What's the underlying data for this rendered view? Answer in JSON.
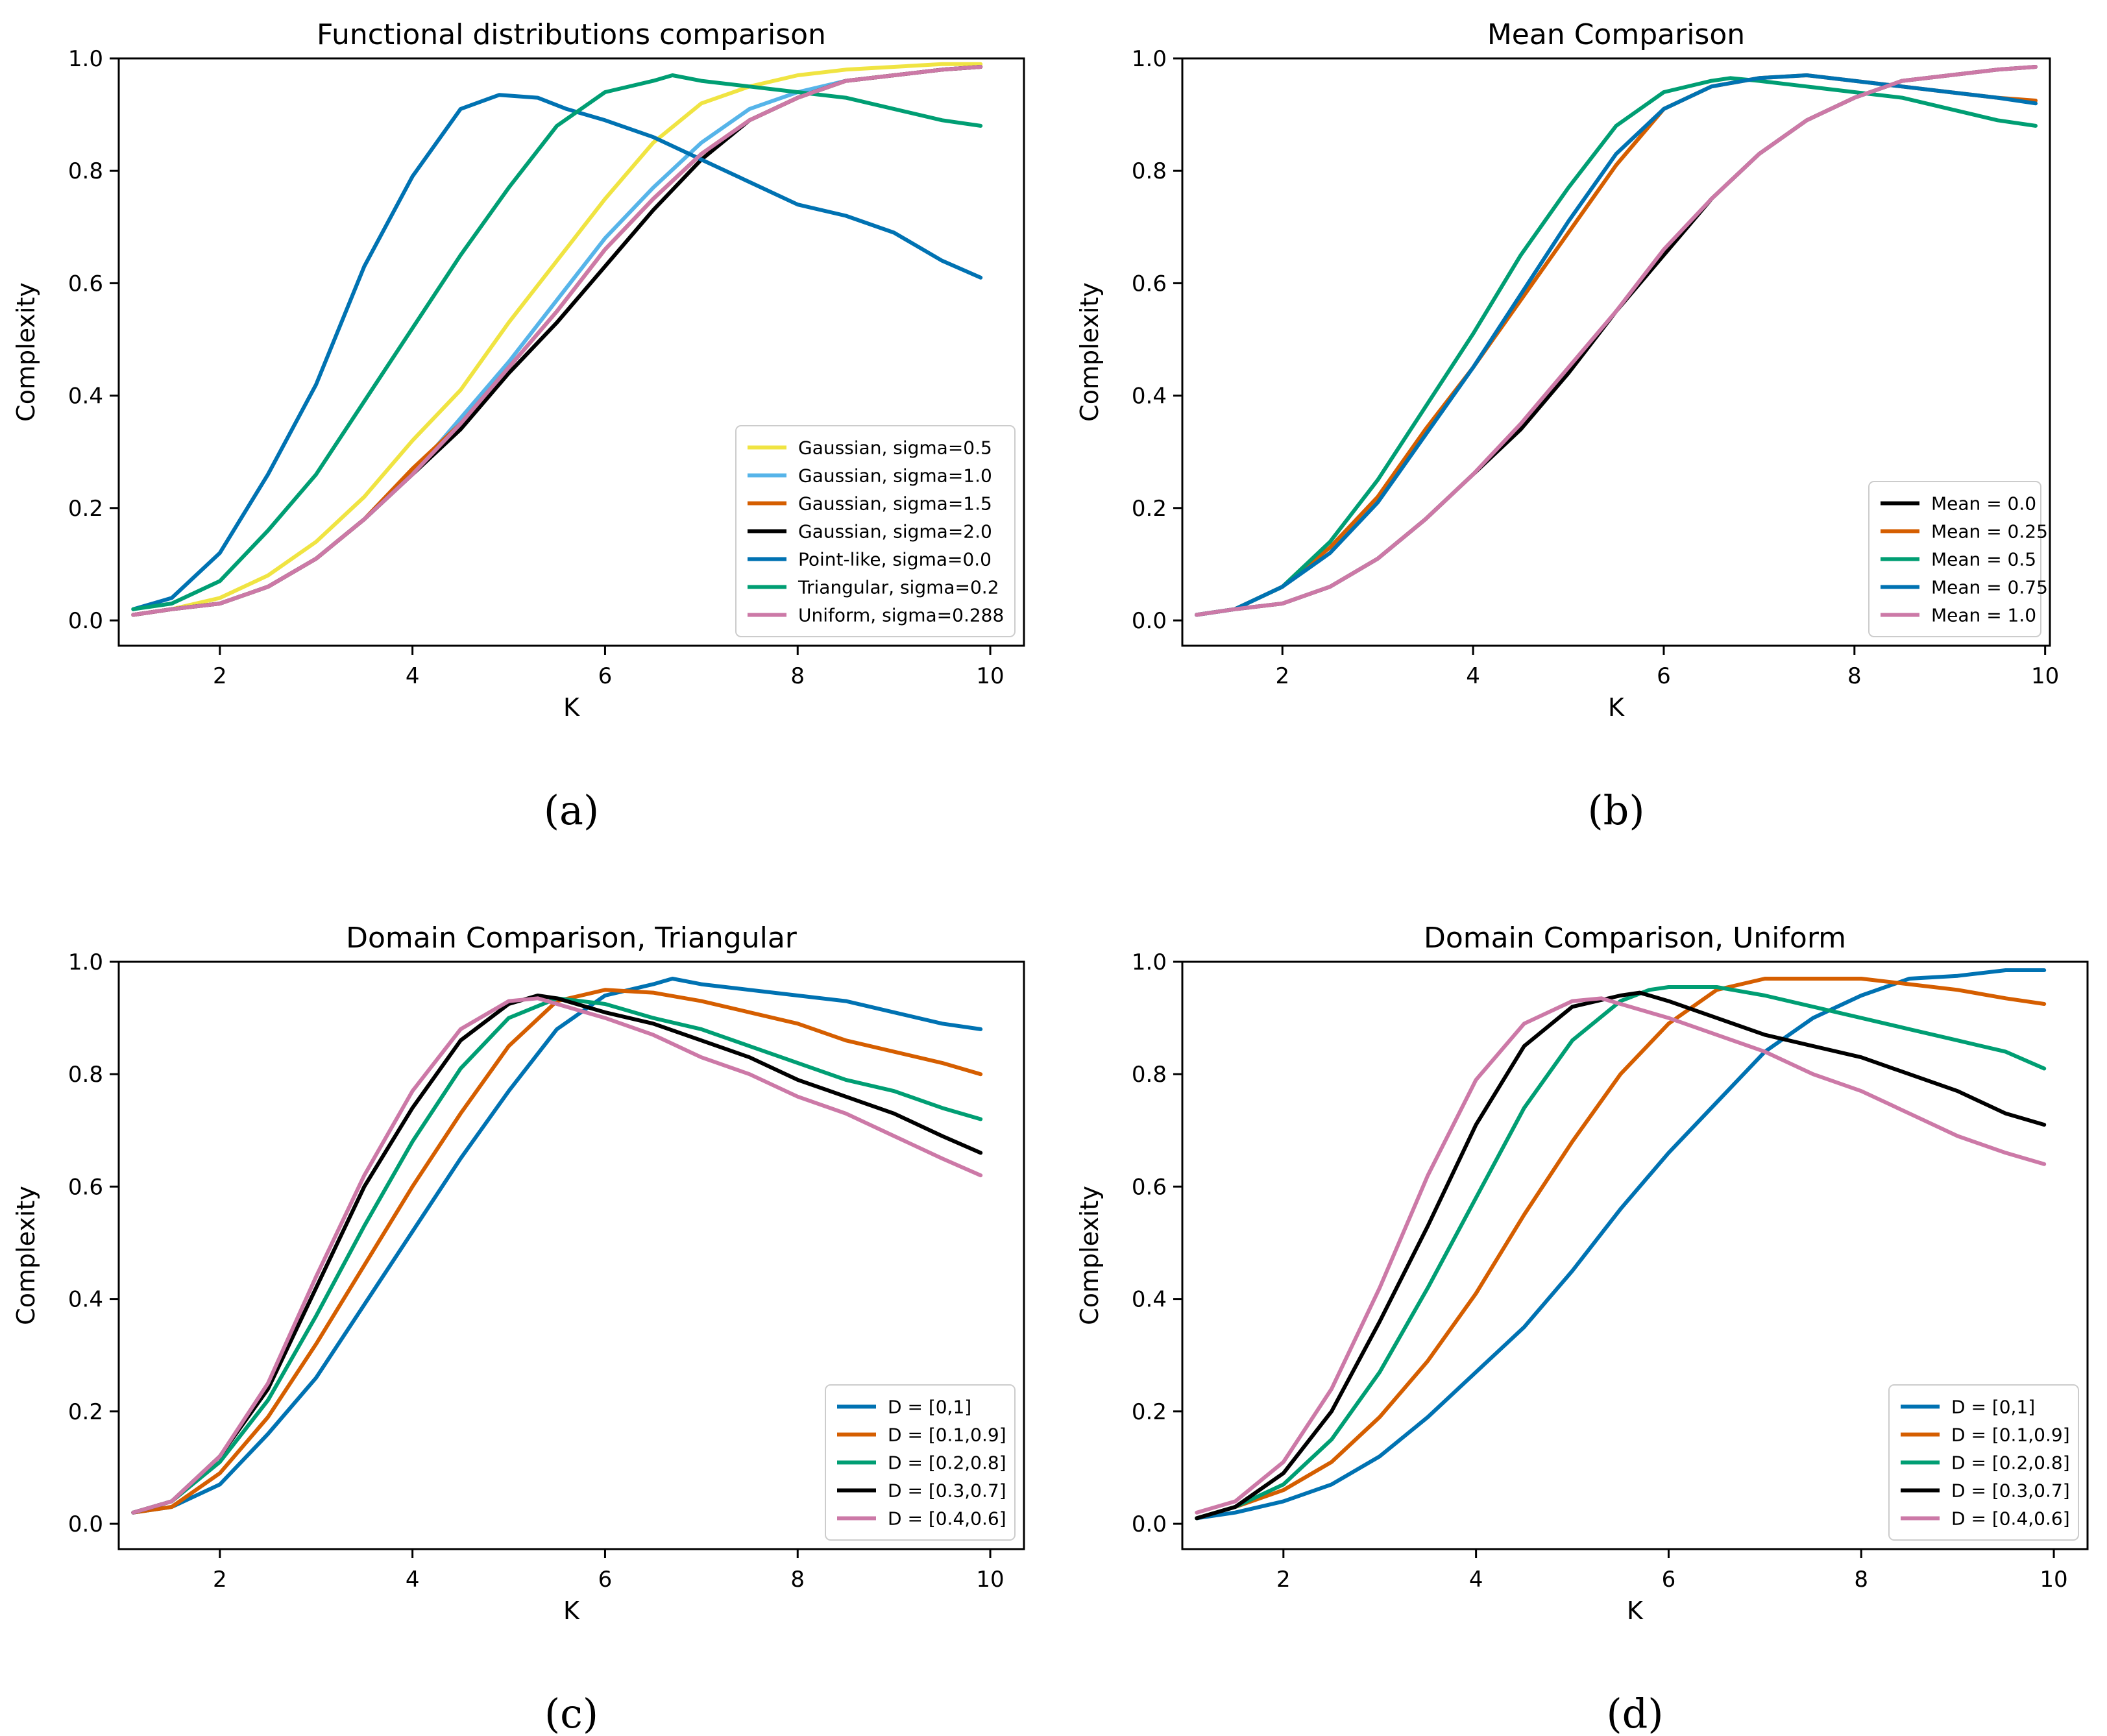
{
  "chart_data": [
    {
      "type": "line",
      "panel_label": "(a)",
      "title": "Functional distributions comparison",
      "xlabel": "K",
      "ylabel": "Complexity",
      "xlim": [
        0.95,
        10.35
      ],
      "ylim": [
        -0.045,
        1.0
      ],
      "xticks": [
        2,
        4,
        6,
        8,
        10
      ],
      "yticks": [
        0.0,
        0.2,
        0.4,
        0.6,
        0.8,
        1.0
      ],
      "legend_position": "lower-right",
      "series": [
        {
          "name": "Gaussian, sigma=0.5",
          "color": "#f0e442",
          "x": [
            1.1,
            1.5,
            2,
            2.5,
            3,
            3.5,
            4,
            4.5,
            5,
            5.5,
            6,
            6.5,
            7,
            7.5,
            8,
            8.5,
            9,
            9.5,
            9.9
          ],
          "y": [
            0.01,
            0.02,
            0.04,
            0.08,
            0.14,
            0.22,
            0.32,
            0.41,
            0.53,
            0.64,
            0.75,
            0.85,
            0.92,
            0.95,
            0.97,
            0.98,
            0.985,
            0.99,
            0.99
          ]
        },
        {
          "name": "Gaussian, sigma=1.0",
          "color": "#56b4e9",
          "x": [
            1.1,
            1.5,
            2,
            2.5,
            3,
            3.5,
            4,
            4.5,
            5,
            5.5,
            6,
            6.5,
            7,
            7.5,
            8,
            8.5,
            9,
            9.5,
            9.9
          ],
          "y": [
            0.01,
            0.02,
            0.03,
            0.06,
            0.11,
            0.18,
            0.26,
            0.36,
            0.46,
            0.57,
            0.68,
            0.77,
            0.85,
            0.91,
            0.94,
            0.96,
            0.97,
            0.98,
            0.985
          ]
        },
        {
          "name": "Gaussian, sigma=1.5",
          "color": "#d55e00",
          "x": [
            1.1,
            1.5,
            2,
            2.5,
            3,
            3.5,
            4,
            4.5,
            5,
            5.5,
            6,
            6.5,
            7,
            7.5,
            8,
            8.5,
            9,
            9.5,
            9.9
          ],
          "y": [
            0.01,
            0.02,
            0.03,
            0.06,
            0.11,
            0.18,
            0.27,
            0.35,
            0.45,
            0.55,
            0.66,
            0.75,
            0.83,
            0.89,
            0.93,
            0.96,
            0.97,
            0.98,
            0.985
          ]
        },
        {
          "name": "Gaussian, sigma=2.0",
          "color": "#000000",
          "x": [
            1.1,
            1.5,
            2,
            2.5,
            3,
            3.5,
            4,
            4.5,
            5,
            5.5,
            6,
            6.5,
            7,
            7.5,
            8,
            8.5,
            9,
            9.5,
            9.9
          ],
          "y": [
            0.01,
            0.02,
            0.03,
            0.06,
            0.11,
            0.18,
            0.26,
            0.34,
            0.44,
            0.53,
            0.63,
            0.73,
            0.82,
            0.89,
            0.93,
            0.96,
            0.97,
            0.98,
            0.985
          ]
        },
        {
          "name": "Point-like, sigma=0.0",
          "color": "#0072b2",
          "x": [
            1.1,
            1.5,
            2,
            2.5,
            3,
            3.5,
            4,
            4.5,
            4.9,
            5.3,
            5.6,
            6,
            6.5,
            7,
            7.5,
            8,
            8.5,
            9,
            9.5,
            9.9
          ],
          "y": [
            0.02,
            0.04,
            0.12,
            0.26,
            0.42,
            0.63,
            0.79,
            0.91,
            0.935,
            0.93,
            0.91,
            0.89,
            0.86,
            0.82,
            0.78,
            0.74,
            0.72,
            0.69,
            0.64,
            0.61
          ]
        },
        {
          "name": "Triangular, sigma=0.2",
          "color": "#009e73",
          "x": [
            1.1,
            1.5,
            2,
            2.5,
            3,
            3.5,
            4,
            4.5,
            5,
            5.5,
            6,
            6.5,
            6.7,
            7,
            7.5,
            8,
            8.5,
            9,
            9.5,
            9.9
          ],
          "y": [
            0.02,
            0.03,
            0.07,
            0.16,
            0.26,
            0.39,
            0.52,
            0.65,
            0.77,
            0.88,
            0.94,
            0.96,
            0.97,
            0.96,
            0.95,
            0.94,
            0.93,
            0.91,
            0.89,
            0.88
          ]
        },
        {
          "name": "Uniform, sigma=0.288",
          "color": "#cc79a7",
          "x": [
            1.1,
            1.5,
            2,
            2.5,
            3,
            3.5,
            4,
            4.5,
            5,
            5.5,
            6,
            6.5,
            7,
            7.5,
            8,
            8.5,
            9,
            9.5,
            9.9
          ],
          "y": [
            0.01,
            0.02,
            0.03,
            0.06,
            0.11,
            0.18,
            0.26,
            0.35,
            0.45,
            0.55,
            0.66,
            0.75,
            0.83,
            0.89,
            0.93,
            0.96,
            0.97,
            0.98,
            0.985
          ]
        }
      ]
    },
    {
      "type": "line",
      "panel_label": "(b)",
      "title": "Mean Comparison",
      "xlabel": "K",
      "ylabel": "Complexity",
      "xlim": [
        0.95,
        10.05
      ],
      "ylim": [
        -0.045,
        1.0
      ],
      "xticks": [
        2,
        4,
        6,
        8,
        10
      ],
      "yticks": [
        0.0,
        0.2,
        0.4,
        0.6,
        0.8,
        1.0
      ],
      "legend_position": "lower-right",
      "series": [
        {
          "name": "Mean = 0.0",
          "color": "#000000",
          "x": [
            1.1,
            1.5,
            2,
            2.5,
            3,
            3.5,
            4,
            4.5,
            5,
            5.5,
            6,
            6.5,
            7,
            7.5,
            8,
            8.5,
            9,
            9.5,
            9.9
          ],
          "y": [
            0.01,
            0.02,
            0.03,
            0.06,
            0.11,
            0.18,
            0.26,
            0.34,
            0.44,
            0.55,
            0.65,
            0.75,
            0.83,
            0.89,
            0.93,
            0.96,
            0.97,
            0.98,
            0.985
          ]
        },
        {
          "name": "Mean = 0.25",
          "color": "#d55e00",
          "x": [
            1.1,
            1.5,
            2,
            2.5,
            3,
            3.5,
            4,
            4.5,
            5,
            5.5,
            6,
            6.5,
            7,
            7.5,
            8,
            8.5,
            9,
            9.5,
            9.9
          ],
          "y": [
            0.01,
            0.02,
            0.06,
            0.13,
            0.22,
            0.34,
            0.45,
            0.57,
            0.69,
            0.81,
            0.91,
            0.95,
            0.965,
            0.97,
            0.96,
            0.95,
            0.94,
            0.93,
            0.925
          ]
        },
        {
          "name": "Mean = 0.5",
          "color": "#009e73",
          "x": [
            1.1,
            1.5,
            2,
            2.5,
            3,
            3.5,
            4,
            4.5,
            5,
            5.5,
            6,
            6.5,
            6.7,
            7,
            7.5,
            8,
            8.5,
            9,
            9.5,
            9.9
          ],
          "y": [
            0.01,
            0.02,
            0.06,
            0.14,
            0.25,
            0.38,
            0.51,
            0.65,
            0.77,
            0.88,
            0.94,
            0.96,
            0.965,
            0.96,
            0.95,
            0.94,
            0.93,
            0.91,
            0.89,
            0.88
          ]
        },
        {
          "name": "Mean = 0.75",
          "color": "#0072b2",
          "x": [
            1.1,
            1.5,
            2,
            2.5,
            3,
            3.5,
            4,
            4.5,
            5,
            5.5,
            6,
            6.5,
            7,
            7.5,
            8,
            8.5,
            9,
            9.5,
            9.9
          ],
          "y": [
            0.01,
            0.02,
            0.06,
            0.12,
            0.21,
            0.33,
            0.45,
            0.58,
            0.71,
            0.83,
            0.91,
            0.95,
            0.965,
            0.97,
            0.96,
            0.95,
            0.94,
            0.93,
            0.92
          ]
        },
        {
          "name": "Mean = 1.0",
          "color": "#cc79a7",
          "x": [
            1.1,
            1.5,
            2,
            2.5,
            3,
            3.5,
            4,
            4.5,
            5,
            5.5,
            6,
            6.5,
            7,
            7.5,
            8,
            8.5,
            9,
            9.5,
            9.9
          ],
          "y": [
            0.01,
            0.02,
            0.03,
            0.06,
            0.11,
            0.18,
            0.26,
            0.35,
            0.45,
            0.55,
            0.66,
            0.75,
            0.83,
            0.89,
            0.93,
            0.96,
            0.97,
            0.98,
            0.985
          ]
        }
      ]
    },
    {
      "type": "line",
      "panel_label": "(c)",
      "title": "Domain Comparison, Triangular",
      "xlabel": "K",
      "ylabel": "Complexity",
      "xlim": [
        0.95,
        10.35
      ],
      "ylim": [
        -0.045,
        1.0
      ],
      "xticks": [
        2,
        4,
        6,
        8,
        10
      ],
      "yticks": [
        0.0,
        0.2,
        0.4,
        0.6,
        0.8,
        1.0
      ],
      "legend_position": "lower-right",
      "series": [
        {
          "name": "D = [0,1]",
          "color": "#0072b2",
          "x": [
            1.1,
            1.5,
            2,
            2.5,
            3,
            3.5,
            4,
            4.5,
            5,
            5.5,
            6,
            6.5,
            6.7,
            7,
            7.5,
            8,
            8.5,
            9,
            9.5,
            9.9
          ],
          "y": [
            0.02,
            0.03,
            0.07,
            0.16,
            0.26,
            0.39,
            0.52,
            0.65,
            0.77,
            0.88,
            0.94,
            0.96,
            0.97,
            0.96,
            0.95,
            0.94,
            0.93,
            0.91,
            0.89,
            0.88
          ]
        },
        {
          "name": "D = [0.1,0.9]",
          "color": "#d55e00",
          "x": [
            1.1,
            1.5,
            2,
            2.5,
            3,
            3.5,
            4,
            4.5,
            5,
            5.5,
            6,
            6.5,
            7,
            7.5,
            8,
            8.5,
            9,
            9.5,
            9.9
          ],
          "y": [
            0.02,
            0.03,
            0.09,
            0.19,
            0.32,
            0.46,
            0.6,
            0.73,
            0.85,
            0.93,
            0.95,
            0.945,
            0.93,
            0.91,
            0.89,
            0.86,
            0.84,
            0.82,
            0.8
          ]
        },
        {
          "name": "D = [0.2,0.8]",
          "color": "#009e73",
          "x": [
            1.1,
            1.5,
            2,
            2.5,
            3,
            3.5,
            4,
            4.5,
            5,
            5.5,
            6,
            6.5,
            7,
            7.5,
            8,
            8.5,
            9,
            9.5,
            9.9
          ],
          "y": [
            0.02,
            0.04,
            0.11,
            0.22,
            0.37,
            0.53,
            0.68,
            0.81,
            0.9,
            0.935,
            0.925,
            0.9,
            0.88,
            0.85,
            0.82,
            0.79,
            0.77,
            0.74,
            0.72
          ]
        },
        {
          "name": "D = [0.3,0.7]",
          "color": "#000000",
          "x": [
            1.1,
            1.5,
            2,
            2.5,
            3,
            3.5,
            4,
            4.5,
            5,
            5.3,
            5.5,
            6,
            6.5,
            7,
            7.5,
            8,
            8.5,
            9,
            9.5,
            9.9
          ],
          "y": [
            0.02,
            0.04,
            0.12,
            0.24,
            0.42,
            0.6,
            0.74,
            0.86,
            0.925,
            0.94,
            0.935,
            0.91,
            0.89,
            0.86,
            0.83,
            0.79,
            0.76,
            0.73,
            0.69,
            0.66
          ]
        },
        {
          "name": "D = [0.4,0.6]",
          "color": "#cc79a7",
          "x": [
            1.1,
            1.5,
            2,
            2.5,
            3,
            3.5,
            4,
            4.5,
            5,
            5.3,
            5.5,
            6,
            6.5,
            7,
            7.5,
            8,
            8.5,
            9,
            9.5,
            9.9
          ],
          "y": [
            0.02,
            0.04,
            0.12,
            0.25,
            0.44,
            0.62,
            0.77,
            0.88,
            0.93,
            0.935,
            0.925,
            0.9,
            0.87,
            0.83,
            0.8,
            0.76,
            0.73,
            0.69,
            0.65,
            0.62
          ]
        }
      ]
    },
    {
      "type": "line",
      "panel_label": "(d)",
      "title": "Domain Comparison, Uniform",
      "xlabel": "K",
      "ylabel": "Complexity",
      "xlim": [
        0.95,
        10.35
      ],
      "ylim": [
        -0.045,
        1.0
      ],
      "xticks": [
        2,
        4,
        6,
        8,
        10
      ],
      "yticks": [
        0.0,
        0.2,
        0.4,
        0.6,
        0.8,
        1.0
      ],
      "legend_position": "lower-right",
      "series": [
        {
          "name": "D = [0,1]",
          "color": "#0072b2",
          "x": [
            1.1,
            1.5,
            2,
            2.5,
            3,
            3.5,
            4,
            4.5,
            5,
            5.5,
            6,
            6.5,
            7,
            7.5,
            8,
            8.5,
            9,
            9.5,
            9.9
          ],
          "y": [
            0.01,
            0.02,
            0.04,
            0.07,
            0.12,
            0.19,
            0.27,
            0.35,
            0.45,
            0.56,
            0.66,
            0.75,
            0.84,
            0.9,
            0.94,
            0.97,
            0.975,
            0.985,
            0.985
          ]
        },
        {
          "name": "D = [0.1,0.9]",
          "color": "#d55e00",
          "x": [
            1.1,
            1.5,
            2,
            2.5,
            3,
            3.5,
            4,
            4.5,
            5,
            5.5,
            6,
            6.5,
            7,
            7.5,
            8,
            8.5,
            9,
            9.5,
            9.9
          ],
          "y": [
            0.01,
            0.03,
            0.06,
            0.11,
            0.19,
            0.29,
            0.41,
            0.55,
            0.68,
            0.8,
            0.89,
            0.95,
            0.97,
            0.97,
            0.97,
            0.96,
            0.95,
            0.935,
            0.925
          ]
        },
        {
          "name": "D = [0.2,0.8]",
          "color": "#009e73",
          "x": [
            1.1,
            1.5,
            2,
            2.5,
            3,
            3.5,
            4,
            4.5,
            5,
            5.5,
            5.8,
            6,
            6.5,
            7,
            7.5,
            8,
            8.5,
            9,
            9.5,
            9.9
          ],
          "y": [
            0.01,
            0.03,
            0.07,
            0.15,
            0.27,
            0.42,
            0.58,
            0.74,
            0.86,
            0.93,
            0.95,
            0.955,
            0.955,
            0.94,
            0.92,
            0.9,
            0.88,
            0.86,
            0.84,
            0.81
          ]
        },
        {
          "name": "D = [0.3,0.7]",
          "color": "#000000",
          "x": [
            1.1,
            1.5,
            2,
            2.5,
            3,
            3.5,
            4,
            4.5,
            5,
            5.5,
            5.7,
            6,
            6.5,
            7,
            7.5,
            8,
            8.5,
            9,
            9.5,
            9.9
          ],
          "y": [
            0.01,
            0.03,
            0.09,
            0.2,
            0.36,
            0.53,
            0.71,
            0.85,
            0.92,
            0.94,
            0.945,
            0.93,
            0.9,
            0.87,
            0.85,
            0.83,
            0.8,
            0.77,
            0.73,
            0.71
          ]
        },
        {
          "name": "D = [0.4,0.6]",
          "color": "#cc79a7",
          "x": [
            1.1,
            1.5,
            2,
            2.5,
            3,
            3.5,
            4,
            4.5,
            5,
            5.3,
            5.5,
            6,
            6.5,
            7,
            7.5,
            8,
            8.5,
            9,
            9.5,
            9.9
          ],
          "y": [
            0.02,
            0.04,
            0.11,
            0.24,
            0.42,
            0.62,
            0.79,
            0.89,
            0.93,
            0.935,
            0.925,
            0.9,
            0.87,
            0.84,
            0.8,
            0.77,
            0.73,
            0.69,
            0.66,
            0.64
          ]
        }
      ]
    }
  ]
}
